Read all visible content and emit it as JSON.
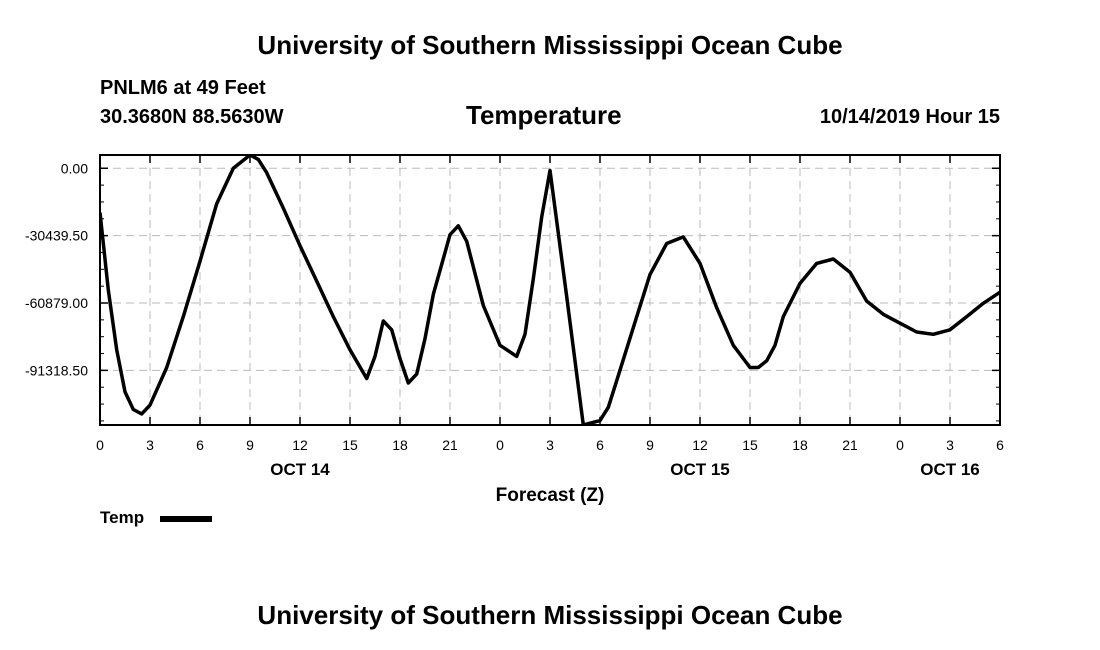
{
  "header": {
    "title": "University of Southern Mississippi Ocean Cube",
    "station": "PNLM6 at 49 Feet",
    "location": "30.3680N 88.5630W",
    "chart_title": "Temperature",
    "timestamp": "10/14/2019 Hour 15"
  },
  "footer": {
    "title": "University of Southern Mississippi Ocean Cube"
  },
  "legend": {
    "label": "Temp"
  },
  "chart_data": {
    "type": "line",
    "title": "Temperature",
    "xlabel": "Forecast (Z)",
    "ylabel": "",
    "x_tick_labels": [
      "0",
      "3",
      "6",
      "9",
      "12",
      "15",
      "18",
      "21",
      "0",
      "3",
      "6",
      "9",
      "12",
      "15",
      "18",
      "21",
      "0",
      "3",
      "6"
    ],
    "date_labels": [
      {
        "label": "OCT 14",
        "at_tick": 4
      },
      {
        "label": "OCT 15",
        "at_tick": 12
      },
      {
        "label": "OCT 16",
        "at_tick": 17
      }
    ],
    "y_tick_labels": [
      "0.00",
      "-30439.50",
      "-60879.00",
      "-91318.50"
    ],
    "y_ticks": [
      0,
      -30439.5,
      -60879,
      -91318.5
    ],
    "xlim": [
      0,
      54
    ],
    "ylim": [
      -116000,
      6000
    ],
    "grid": true,
    "legend_position": "bottom-left",
    "series": [
      {
        "name": "Temp",
        "color": "#000000",
        "x": [
          0,
          0.5,
          1,
          1.5,
          2,
          2.5,
          3,
          4,
          5,
          6,
          7,
          8,
          9,
          9.5,
          10,
          11,
          12,
          13,
          14,
          15,
          16,
          16.5,
          17,
          17.5,
          18,
          18.5,
          19,
          19.5,
          20,
          21,
          21.5,
          22,
          23,
          24,
          25,
          25.5,
          26,
          26.5,
          27,
          28,
          29,
          30,
          30.5,
          31,
          32,
          33,
          34,
          35,
          36,
          37,
          38,
          39,
          39.5,
          40,
          40.5,
          41,
          42,
          43,
          44,
          45,
          46,
          47,
          48,
          49,
          50,
          51,
          52,
          53,
          54
        ],
        "values": [
          -20000,
          -55000,
          -82000,
          -101000,
          -109000,
          -111000,
          -107000,
          -90000,
          -67000,
          -42000,
          -16000,
          0,
          6000,
          4000,
          -2000,
          -18000,
          -35000,
          -51000,
          -67000,
          -82000,
          -95000,
          -85000,
          -69000,
          -73000,
          -86000,
          -97000,
          -93000,
          -77000,
          -57000,
          -30000,
          -26000,
          -33000,
          -62000,
          -80000,
          -85000,
          -75000,
          -50000,
          -22000,
          -1000,
          -58000,
          -116000,
          -114000,
          -108000,
          -96000,
          -72000,
          -48000,
          -34000,
          -31000,
          -43000,
          -63000,
          -80000,
          -90000,
          -90000,
          -87000,
          -80000,
          -67000,
          -52000,
          -43000,
          -41000,
          -47000,
          -60000,
          -66000,
          -70000,
          -74000,
          -75000,
          -73000,
          -67000,
          -61000,
          -56000
        ]
      }
    ]
  }
}
